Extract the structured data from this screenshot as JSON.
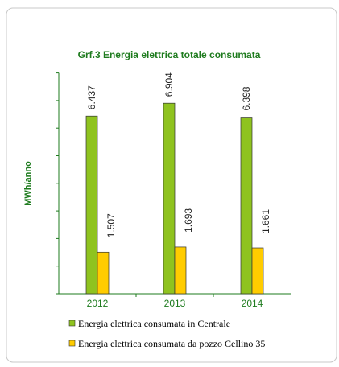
{
  "chart_data": {
    "type": "bar",
    "title": "Grf.3 Energia elettrica totale consumata",
    "y_label": "MWh/anno",
    "categories": [
      "2012",
      "2013",
      "2014"
    ],
    "series": [
      {
        "name": "Energia elettrica consumata in Centrale",
        "color": "#8fc31f",
        "values": [
          6437,
          6904,
          6398
        ],
        "value_labels": [
          "6.437",
          "6.904",
          "6.398"
        ]
      },
      {
        "name": "Energia elettrica consumata da pozzo Cellino 35",
        "color": "#ffcc00",
        "values": [
          1507,
          1693,
          1661
        ],
        "value_labels": [
          "1.507",
          "1.693",
          "1.661"
        ]
      }
    ],
    "ylim": [
      0,
      8000
    ],
    "yticks": [
      0,
      1000,
      2000,
      3000,
      4000,
      5000,
      6000,
      7000,
      8000
    ],
    "grid": false
  }
}
